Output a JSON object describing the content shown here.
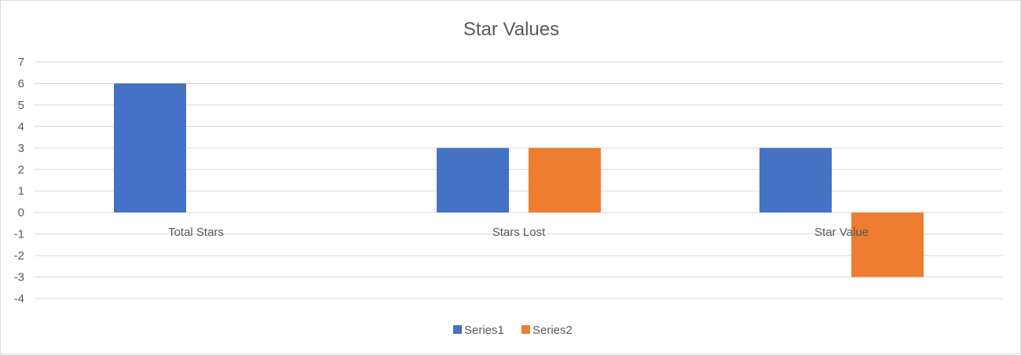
{
  "chart_data": {
    "type": "bar",
    "title": "Star Values",
    "categories": [
      "Total Stars",
      "Stars Lost",
      "Star Value"
    ],
    "series": [
      {
        "name": "Series1",
        "values": [
          6,
          3,
          3
        ],
        "color": "#4472c4"
      },
      {
        "name": "Series2",
        "values": [
          null,
          3,
          -3
        ],
        "color": "#ed7d31"
      }
    ],
    "ylim": [
      -4,
      7
    ],
    "yticks": [
      -4,
      -3,
      -2,
      -1,
      0,
      1,
      2,
      3,
      4,
      5,
      6,
      7
    ],
    "grid": true,
    "legend": "bottom"
  }
}
